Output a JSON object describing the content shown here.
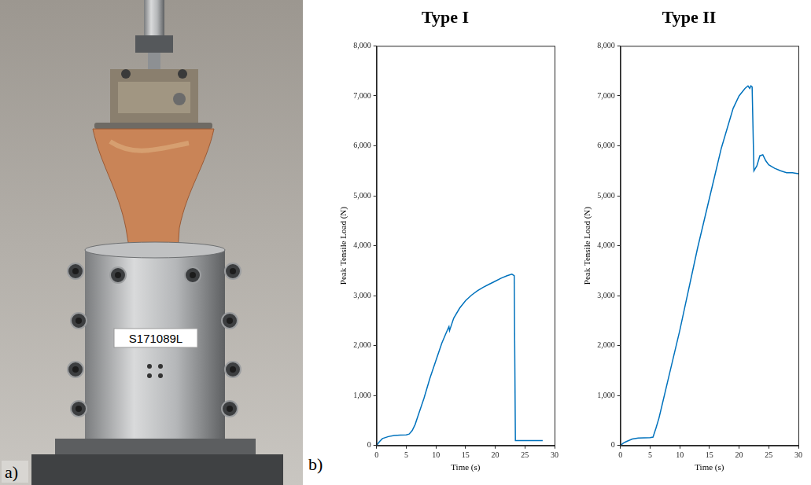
{
  "chart_data": [
    {
      "type": "line",
      "title": "Type I",
      "x_label": "Time (s)",
      "y_label": "Peak Tensile Load (N)",
      "color": "#0072bd",
      "grid": false,
      "xlim": [
        0,
        30
      ],
      "xticks": [
        0,
        5,
        10,
        15,
        20,
        25,
        30
      ],
      "ylim": [
        0,
        8000
      ],
      "yticks": [
        0,
        1000,
        2000,
        3000,
        4000,
        5000,
        6000,
        7000,
        8000
      ],
      "x": [
        0,
        0.5,
        1,
        2,
        3,
        4,
        5,
        5.5,
        6,
        6.5,
        7,
        8,
        9,
        10,
        11,
        12,
        12.2,
        12.3,
        13,
        14,
        15,
        16,
        17,
        18,
        19,
        20,
        21,
        22,
        22.8,
        23.2,
        23.4,
        24,
        26,
        28
      ],
      "values": [
        0,
        80,
        140,
        180,
        200,
        210,
        215,
        230,
        300,
        420,
        600,
        950,
        1350,
        1700,
        2050,
        2330,
        2380,
        2300,
        2550,
        2750,
        2900,
        3010,
        3100,
        3170,
        3230,
        3290,
        3350,
        3400,
        3430,
        3400,
        100,
        100,
        100,
        100
      ]
    },
    {
      "type": "line",
      "title": "Type II",
      "x_label": "Time (s)",
      "y_label": "Peak Tensile Load (N)",
      "color": "#0072bd",
      "grid": false,
      "xlim": [
        0,
        30
      ],
      "xticks": [
        0,
        5,
        10,
        15,
        20,
        25,
        30
      ],
      "ylim": [
        0,
        8000
      ],
      "yticks": [
        0,
        1000,
        2000,
        3000,
        4000,
        5000,
        6000,
        7000,
        8000
      ],
      "x": [
        0,
        0.5,
        1,
        2,
        3,
        4,
        5,
        5.5,
        6,
        6.5,
        7,
        8,
        9,
        10,
        11,
        12,
        13,
        14,
        15,
        16,
        17,
        18,
        19,
        20,
        21,
        21.5,
        21.8,
        22,
        22.2,
        22.5,
        23,
        23.5,
        24,
        24.5,
        25,
        26,
        27,
        28,
        29,
        30
      ],
      "values": [
        0,
        50,
        80,
        130,
        150,
        155,
        160,
        170,
        350,
        550,
        800,
        1300,
        1800,
        2300,
        2850,
        3400,
        3950,
        4450,
        4950,
        5450,
        5950,
        6350,
        6750,
        7000,
        7150,
        7200,
        7150,
        7200,
        7180,
        5500,
        5600,
        5800,
        5820,
        5700,
        5620,
        5550,
        5500,
        5460,
        5460,
        5440
      ]
    }
  ],
  "photo": {
    "panel_label": "a)",
    "specimen_label": "S171089L"
  },
  "chart_panel_label": "b)"
}
